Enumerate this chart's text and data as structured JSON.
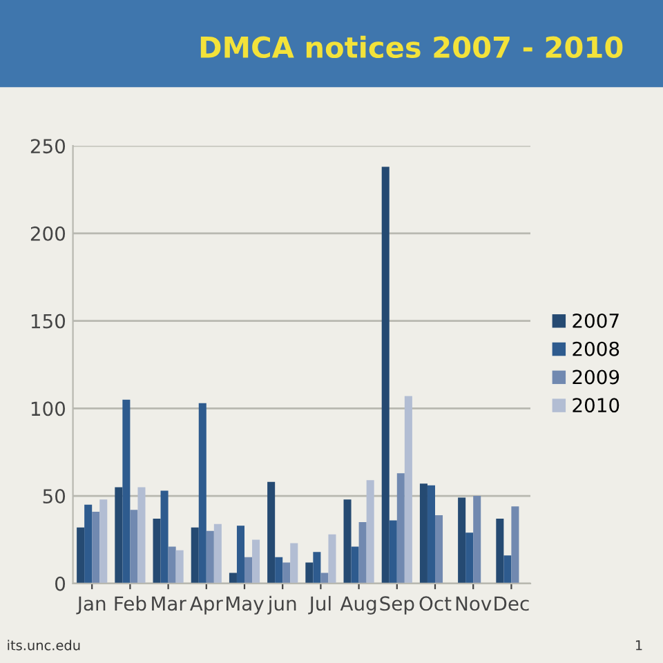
{
  "chart_data": {
    "type": "bar",
    "title": "DMCA notices 2007 - 2010",
    "categories": [
      "Jan",
      "Feb",
      "Mar",
      "Apr",
      "May",
      "jun",
      "Jul",
      "Aug",
      "Sep",
      "Oct",
      "Nov",
      "Dec"
    ],
    "series": [
      {
        "name": "2007",
        "color": "#254a72",
        "values": [
          32,
          55,
          37,
          32,
          6,
          58,
          12,
          48,
          238,
          57,
          49,
          37
        ]
      },
      {
        "name": "2008",
        "color": "#2e5b8e",
        "values": [
          45,
          105,
          53,
          103,
          33,
          15,
          18,
          21,
          36,
          56,
          29,
          16
        ]
      },
      {
        "name": "2009",
        "color": "#7189b0",
        "values": [
          41,
          42,
          21,
          30,
          15,
          12,
          6,
          35,
          63,
          39,
          50,
          44
        ]
      },
      {
        "name": "2010",
        "color": "#b2bdd3",
        "values": [
          48,
          55,
          19,
          34,
          25,
          23,
          28,
          59,
          107,
          null,
          null,
          null
        ]
      }
    ],
    "ylim": [
      0,
      250
    ],
    "yticks": [
      0,
      50,
      100,
      150,
      200,
      250
    ],
    "grid": "y",
    "legend": "right",
    "annotations": [
      "its.unc.edu",
      "1"
    ]
  }
}
